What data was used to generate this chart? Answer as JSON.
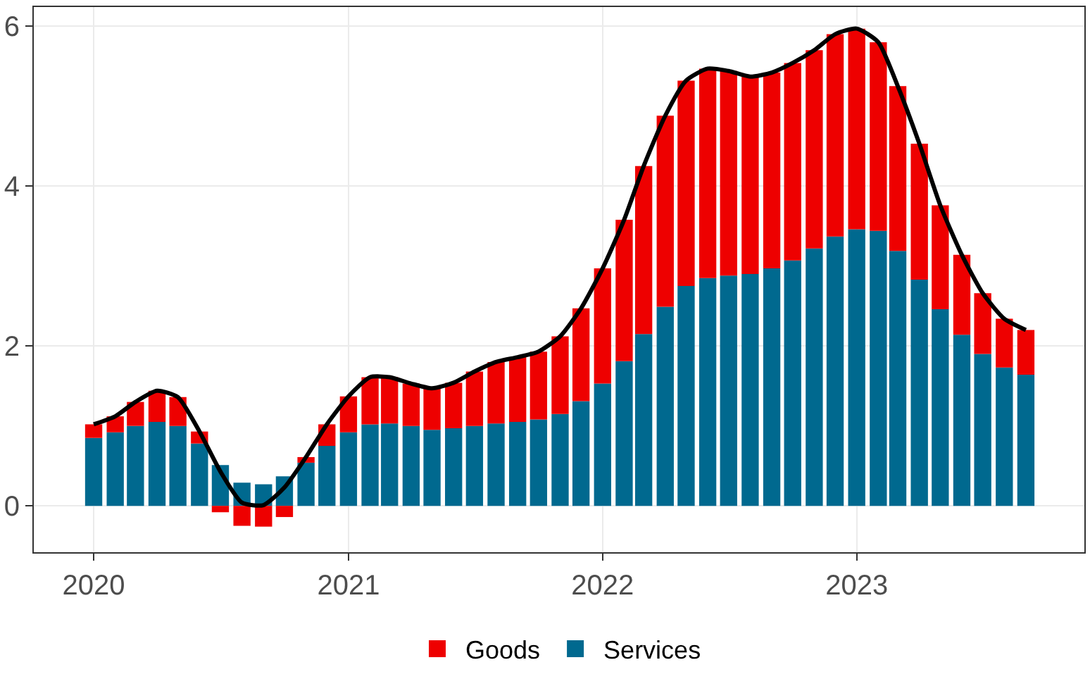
{
  "chart_data": {
    "type": "bar",
    "stacked": true,
    "x": [
      "2020-01",
      "2020-02",
      "2020-03",
      "2020-04",
      "2020-05",
      "2020-06",
      "2020-07",
      "2020-08",
      "2020-09",
      "2020-10",
      "2020-11",
      "2020-12",
      "2021-01",
      "2021-02",
      "2021-03",
      "2021-04",
      "2021-05",
      "2021-06",
      "2021-07",
      "2021-08",
      "2021-09",
      "2021-10",
      "2021-11",
      "2021-12",
      "2022-01",
      "2022-02",
      "2022-03",
      "2022-04",
      "2022-05",
      "2022-06",
      "2022-07",
      "2022-08",
      "2022-09",
      "2022-10",
      "2022-11",
      "2022-12",
      "2023-01",
      "2023-02",
      "2023-03",
      "2023-04",
      "2023-05",
      "2023-06",
      "2023-07",
      "2023-08",
      "2023-09"
    ],
    "series": [
      {
        "name": "Services",
        "color": "#00698f",
        "values": [
          0.85,
          0.92,
          1.0,
          1.05,
          1.0,
          0.78,
          0.51,
          0.29,
          0.27,
          0.37,
          0.54,
          0.75,
          0.92,
          1.02,
          1.03,
          1.0,
          0.95,
          0.97,
          1.0,
          1.03,
          1.05,
          1.08,
          1.15,
          1.31,
          1.53,
          1.81,
          2.15,
          2.49,
          2.75,
          2.85,
          2.88,
          2.9,
          2.97,
          3.07,
          3.22,
          3.37,
          3.46,
          3.44,
          3.19,
          2.83,
          2.46,
          2.14,
          1.9,
          1.73,
          1.64
        ]
      },
      {
        "name": "Goods",
        "color": "#ee0000",
        "values": [
          0.17,
          0.2,
          0.3,
          0.39,
          0.36,
          0.15,
          -0.08,
          -0.25,
          -0.26,
          -0.14,
          0.07,
          0.27,
          0.45,
          0.59,
          0.58,
          0.53,
          0.52,
          0.57,
          0.68,
          0.77,
          0.81,
          0.85,
          0.97,
          1.16,
          1.44,
          1.77,
          2.1,
          2.39,
          2.57,
          2.62,
          2.56,
          2.47,
          2.45,
          2.47,
          2.48,
          2.53,
          2.51,
          2.36,
          2.06,
          1.7,
          1.3,
          1.0,
          0.76,
          0.61,
          0.56
        ]
      },
      {
        "type": "line",
        "color": "#000000",
        "values": [
          1.02,
          1.12,
          1.3,
          1.44,
          1.36,
          0.93,
          0.43,
          0.04,
          0.01,
          0.23,
          0.61,
          1.02,
          1.37,
          1.61,
          1.61,
          1.53,
          1.47,
          1.54,
          1.68,
          1.8,
          1.86,
          1.93,
          2.12,
          2.47,
          2.97,
          3.58,
          4.25,
          4.88,
          5.32,
          5.47,
          5.44,
          5.37,
          5.42,
          5.54,
          5.7,
          5.9,
          5.97,
          5.8,
          5.25,
          4.53,
          3.76,
          3.14,
          2.66,
          2.34,
          2.2
        ]
      }
    ],
    "xlim": [
      "2019-10-07",
      "2023-11-24"
    ],
    "xticks": [
      {
        "value": "2020-01-01",
        "label": "2020"
      },
      {
        "value": "2021-01-01",
        "label": "2021"
      },
      {
        "value": "2022-01-01",
        "label": "2022"
      },
      {
        "value": "2023-01-01",
        "label": "2023"
      }
    ],
    "ylim": [
      -0.58,
      6.24
    ],
    "yticks": [
      0,
      2,
      4,
      6
    ],
    "grid": true,
    "legend": "bottom"
  }
}
